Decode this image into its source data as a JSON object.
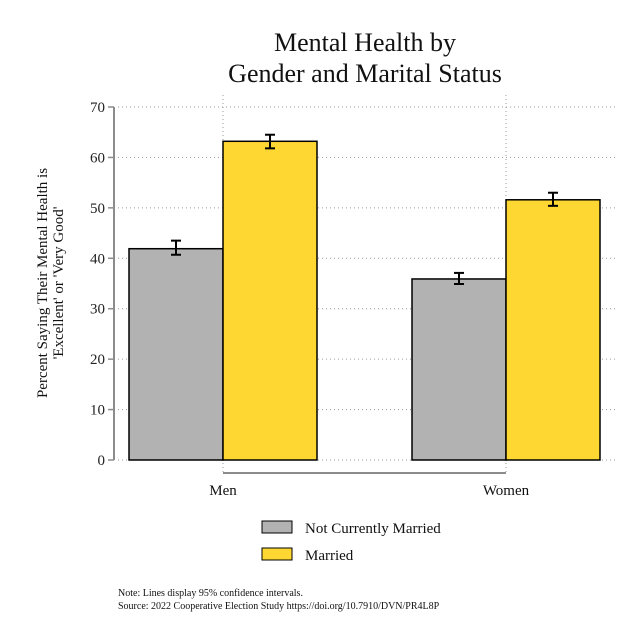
{
  "chart_data": {
    "type": "bar",
    "title": [
      "Mental Health by",
      "Gender and Marital Status"
    ],
    "xlabel": "",
    "ylabel": [
      "Percent Saying Their Mental Health is",
      "'Excellent' or 'Very Good'"
    ],
    "categories": [
      "Men",
      "Women"
    ],
    "series": [
      {
        "name": "Not Currently Married",
        "color": "#b2b2b2",
        "values": [
          41.9,
          35.9
        ],
        "ci_low": [
          40.7,
          34.9
        ],
        "ci_high": [
          43.5,
          37.1
        ]
      },
      {
        "name": "Married",
        "color": "#ffd732",
        "values": [
          63.2,
          51.6
        ],
        "ci_low": [
          61.8,
          50.4
        ],
        "ci_high": [
          64.5,
          53.0
        ]
      }
    ],
    "ylim": [
      0,
      70
    ],
    "yticks": [
      0,
      10,
      20,
      30,
      40,
      50,
      60,
      70
    ],
    "grid": true,
    "legend_position": "bottom-center",
    "notes": [
      "Note: Lines display 95% confidence intervals.",
      "Source: 2022 Cooperative Election Study https://doi.org/10.7910/DVN/PR4L8P"
    ]
  }
}
